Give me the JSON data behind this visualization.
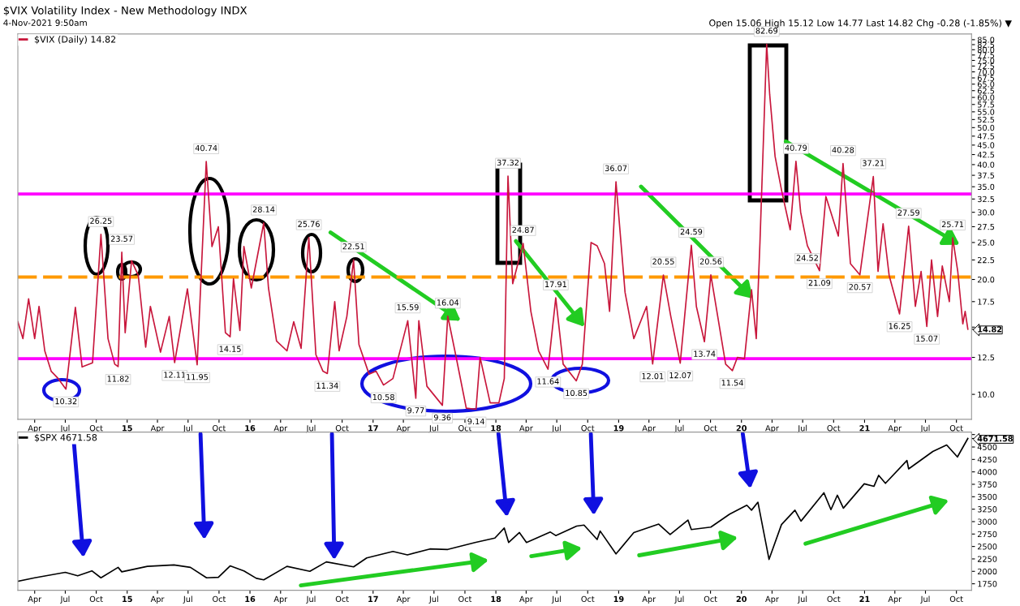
{
  "chart_data": [
    {
      "type": "line",
      "title": "$VIX Volatility Index - New Methodology INDX",
      "subtitle": "4-Nov-2021 9:50am",
      "log": "y",
      "legend": "top left",
      "marker": "none",
      "line_style": "solid",
      "ylim": [
        8.6,
        88
      ],
      "yticks": [
        {
          "value": 10,
          "label": "10.0"
        },
        {
          "value": 12.5,
          "label": "12.5"
        },
        {
          "value": 14.82,
          "label": "14.82"
        },
        {
          "value": 15,
          "label": null
        },
        {
          "value": 17.5,
          "label": "17.5"
        },
        {
          "value": 20,
          "label": "20.0"
        },
        {
          "value": 22.5,
          "label": "22.5"
        },
        {
          "value": 25,
          "label": "25.0"
        },
        {
          "value": 27.5,
          "label": "27.5"
        },
        {
          "value": 30,
          "label": "30.0"
        },
        {
          "value": 32.5,
          "label": "32.5"
        },
        {
          "value": 35,
          "label": "35.0"
        },
        {
          "value": 37.5,
          "label": "37.5"
        },
        {
          "value": 40,
          "label": "40.0"
        },
        {
          "value": 42.5,
          "label": "42.5"
        },
        {
          "value": 45,
          "label": "45.0"
        },
        {
          "value": 47.5,
          "label": "47.5"
        },
        {
          "value": 50,
          "label": "50.0"
        },
        {
          "value": 52.5,
          "label": "52.5"
        },
        {
          "value": 55,
          "label": "55.0"
        },
        {
          "value": 57.5,
          "label": "57.5"
        },
        {
          "value": 60,
          "label": "60.0"
        },
        {
          "value": 62.5,
          "label": "62.5"
        },
        {
          "value": 65,
          "label": "65.0"
        },
        {
          "value": 67.5,
          "label": "67.5"
        },
        {
          "value": 70,
          "label": "70.0"
        },
        {
          "value": 72.5,
          "label": "72.5"
        },
        {
          "value": 75,
          "label": "75.0"
        },
        {
          "value": 77.5,
          "label": "77.5"
        },
        {
          "value": 80,
          "label": "80.0"
        },
        {
          "value": 82.5,
          "label": "82.5"
        },
        {
          "value": 85,
          "label": "85.0"
        }
      ],
      "xlim": [
        "2014-02-10",
        "2021-11-15"
      ],
      "xticks": [
        {
          "value": "2014-04-01",
          "label": "Apr"
        },
        {
          "value": "2014-07-01",
          "label": "Jul"
        },
        {
          "value": "2014-10-01",
          "label": "Oct"
        },
        {
          "value": "2015-01-01",
          "label": "15"
        },
        {
          "value": "2015-04-01",
          "label": "Apr"
        },
        {
          "value": "2015-07-01",
          "label": "Jul"
        },
        {
          "value": "2015-10-01",
          "label": "Oct"
        },
        {
          "value": "2016-01-01",
          "label": "16"
        },
        {
          "value": "2016-04-01",
          "label": "Apr"
        },
        {
          "value": "2016-07-01",
          "label": "Jul"
        },
        {
          "value": "2016-10-01",
          "label": "Oct"
        },
        {
          "value": "2017-01-01",
          "label": "17"
        },
        {
          "value": "2017-04-01",
          "label": "Apr"
        },
        {
          "value": "2017-07-01",
          "label": "Jul"
        },
        {
          "value": "2017-10-01",
          "label": "Oct"
        },
        {
          "value": "2018-01-01",
          "label": "18"
        },
        {
          "value": "2018-04-01",
          "label": "Apr"
        },
        {
          "value": "2018-07-01",
          "label": "Jul"
        },
        {
          "value": "2018-10-01",
          "label": "Oct"
        },
        {
          "value": "2019-01-01",
          "label": "19"
        },
        {
          "value": "2019-04-01",
          "label": "Apr"
        },
        {
          "value": "2019-07-01",
          "label": "Jul"
        },
        {
          "value": "2019-10-01",
          "label": "Oct"
        },
        {
          "value": "2020-01-01",
          "label": "20"
        },
        {
          "value": "2020-04-01",
          "label": "Apr"
        },
        {
          "value": "2020-07-01",
          "label": "Jul"
        },
        {
          "value": "2020-10-01",
          "label": "Oct"
        },
        {
          "value": "2021-01-01",
          "label": "21"
        },
        {
          "value": "2021-04-01",
          "label": "Apr"
        },
        {
          "value": "2021-07-01",
          "label": "Jul"
        },
        {
          "value": "2021-10-01",
          "label": "Oct"
        }
      ],
      "ref_lines": [
        {
          "axis": "y",
          "value": 33.5,
          "color": "#ff00ff",
          "line_style": "solid"
        },
        {
          "axis": "y",
          "value": 12.4,
          "color": "#ff00ff",
          "line_style": "solid"
        },
        {
          "axis": "y",
          "value": 20.3,
          "color": "#ff9900",
          "line_style": "dashed"
        }
      ],
      "series": [
        {
          "name": "$VIX (Daily) 14.82",
          "color": "#c8173c",
          "x": [
            "2014-02-10",
            "2014-02-25",
            "2014-03-14",
            "2014-04-01",
            "2014-04-14",
            "2014-05-01",
            "2014-05-20",
            "2014-06-10",
            "2014-07-03",
            "2014-07-31",
            "2014-08-20",
            "2014-09-20",
            "2014-10-15",
            "2014-11-05",
            "2014-11-25",
            "2014-12-05",
            "2014-12-16",
            "2014-12-26",
            "2015-01-14",
            "2015-02-03",
            "2015-02-25",
            "2015-03-11",
            "2015-04-10",
            "2015-05-06",
            "2015-05-22",
            "2015-06-29",
            "2015-07-28",
            "2015-08-24",
            "2015-09-10",
            "2015-09-29",
            "2015-10-20",
            "2015-11-03",
            "2015-11-13",
            "2015-12-02",
            "2015-12-14",
            "2016-01-05",
            "2016-02-11",
            "2016-02-25",
            "2016-03-20",
            "2016-04-20",
            "2016-05-10",
            "2016-06-01",
            "2016-06-24",
            "2016-07-15",
            "2016-08-05",
            "2016-08-18",
            "2016-09-09",
            "2016-09-22",
            "2016-10-15",
            "2016-11-04",
            "2016-11-20",
            "2016-12-20",
            "2017-01-10",
            "2017-02-01",
            "2017-03-01",
            "2017-04-14",
            "2017-05-08",
            "2017-05-17",
            "2017-06-10",
            "2017-07-26",
            "2017-08-11",
            "2017-09-05",
            "2017-10-05",
            "2017-11-03",
            "2017-11-15",
            "2017-12-15",
            "2018-01-10",
            "2018-01-26",
            "2018-02-06",
            "2018-02-20",
            "2018-03-23",
            "2018-04-15",
            "2018-05-08",
            "2018-06-05",
            "2018-06-28",
            "2018-07-20",
            "2018-08-28",
            "2018-09-15",
            "2018-10-11",
            "2018-10-29",
            "2018-11-20",
            "2018-12-05",
            "2018-12-24",
            "2019-01-20",
            "2019-02-15",
            "2019-03-25",
            "2019-04-12",
            "2019-05-14",
            "2019-06-05",
            "2019-07-03",
            "2019-08-05",
            "2019-08-20",
            "2019-09-13",
            "2019-10-02",
            "2019-11-15",
            "2019-12-05",
            "2019-12-20",
            "2020-01-10",
            "2020-01-31",
            "2020-02-14",
            "2020-02-25",
            "2020-03-16",
            "2020-03-25",
            "2020-04-10",
            "2020-04-30",
            "2020-05-25",
            "2020-06-11",
            "2020-06-25",
            "2020-07-15",
            "2020-08-20",
            "2020-09-08",
            "2020-10-15",
            "2020-10-29",
            "2020-11-20",
            "2020-12-18",
            "2021-01-27",
            "2021-02-10",
            "2021-02-25",
            "2021-03-15",
            "2021-04-15",
            "2021-05-12",
            "2021-06-01",
            "2021-06-18",
            "2021-07-05",
            "2021-07-19",
            "2021-08-06",
            "2021-08-20",
            "2021-09-10",
            "2021-09-20",
            "2021-10-05",
            "2021-10-20",
            "2021-10-27",
            "2021-11-04"
          ],
          "values": [
            15.5,
            14,
            17.8,
            14,
            17,
            13,
            11.5,
            11,
            10.32,
            16.9,
            11.8,
            12.1,
            26.25,
            14,
            12,
            11.82,
            23.57,
            14.5,
            22.4,
            20.5,
            13.3,
            17,
            12.9,
            16,
            12.11,
            18.9,
            11.95,
            40.74,
            24.4,
            27.5,
            14.5,
            14.15,
            20.1,
            14.7,
            24.4,
            19,
            28.14,
            19,
            13.8,
            13,
            15.5,
            13.2,
            25.76,
            12.7,
            11.5,
            11.34,
            17.5,
            13,
            16,
            22.51,
            13.5,
            11.3,
            11.5,
            10.58,
            11,
            15.59,
            9.77,
            15.6,
            10.5,
            9.36,
            16.04,
            12.5,
            9.2,
            9.14,
            12.5,
            9.5,
            9.5,
            11,
            37.32,
            19.5,
            24.87,
            16.5,
            13,
            11.64,
            17.91,
            12,
            10.85,
            12,
            25,
            24.5,
            22,
            16.5,
            36.07,
            18.5,
            14,
            17,
            12.01,
            20.55,
            16,
            12.07,
            24.59,
            17,
            13.74,
            20.56,
            12,
            11.54,
            12.5,
            12.4,
            18.8,
            14,
            25,
            82.69,
            61,
            42,
            34,
            27,
            40.79,
            30,
            24.52,
            21.09,
            33,
            26,
            40.28,
            22,
            20.57,
            37.21,
            21,
            28,
            20.5,
            16.25,
            27.59,
            17,
            21,
            15.07,
            22.5,
            16,
            21.7,
            17.5,
            25.71,
            21,
            15.3,
            16.5,
            14.82
          ]
        }
      ],
      "annotations": [
        "Open 15.06 High 15.12 Low 14.77 Last 14.82 Chg -0.28 (-1.85%) ▼",
        {
          "text": "10.32",
          "x": "2014-07-03",
          "y": 10.32
        },
        {
          "text": "26.25",
          "x": "2014-10-15",
          "y": 26.25
        },
        {
          "text": "11.82",
          "x": "2014-12-05",
          "y": 11.82
        },
        {
          "text": "23.57",
          "x": "2014-12-16",
          "y": 23.57
        },
        {
          "text": "12.11",
          "x": "2015-05-22",
          "y": 12.11
        },
        {
          "text": "11.95",
          "x": "2015-07-28",
          "y": 11.95
        },
        {
          "text": "40.74",
          "x": "2015-08-24",
          "y": 40.74
        },
        {
          "text": "14.15",
          "x": "2015-11-03",
          "y": 14.15
        },
        {
          "text": "28.14",
          "x": "2016-02-11",
          "y": 28.14
        },
        {
          "text": "25.76",
          "x": "2016-06-24",
          "y": 25.76
        },
        {
          "text": "11.34",
          "x": "2016-08-18",
          "y": 11.34
        },
        {
          "text": "22.51",
          "x": "2016-11-04",
          "y": 22.51
        },
        {
          "text": "10.58",
          "x": "2017-02-01",
          "y": 10.58
        },
        {
          "text": "15.59",
          "x": "2017-04-14",
          "y": 15.59
        },
        {
          "text": "9.77",
          "x": "2017-05-08",
          "y": 9.77
        },
        {
          "text": "9.36",
          "x": "2017-07-26",
          "y": 9.36
        },
        {
          "text": "16.04",
          "x": "2017-08-11",
          "y": 16.04
        },
        {
          "text": "9.14",
          "x": "2017-11-03",
          "y": 9.14
        },
        {
          "text": "37.32",
          "x": "2018-02-06",
          "y": 37.32
        },
        {
          "text": "24.87",
          "x": "2018-03-23",
          "y": 24.87
        },
        {
          "text": "11.64",
          "x": "2018-06-05",
          "y": 11.64
        },
        {
          "text": "17.91",
          "x": "2018-06-28",
          "y": 17.91
        },
        {
          "text": "10.85",
          "x": "2018-08-28",
          "y": 10.85
        },
        {
          "text": "36.07",
          "x": "2018-12-24",
          "y": 36.07
        },
        {
          "text": "12.01",
          "x": "2019-04-12",
          "y": 12.01
        },
        {
          "text": "20.55",
          "x": "2019-05-14",
          "y": 20.55
        },
        {
          "text": "12.07",
          "x": "2019-07-03",
          "y": 12.07
        },
        {
          "text": "24.59",
          "x": "2019-08-05",
          "y": 24.59
        },
        {
          "text": "13.74",
          "x": "2019-09-13",
          "y": 13.74
        },
        {
          "text": "20.56",
          "x": "2019-10-02",
          "y": 20.56
        },
        {
          "text": "11.54",
          "x": "2019-12-05",
          "y": 11.54
        },
        {
          "text": "82.69",
          "x": "2020-03-16",
          "y": 82.69
        },
        {
          "text": "40.79",
          "x": "2020-06-11",
          "y": 40.79
        },
        {
          "text": "24.52",
          "x": "2020-07-15",
          "y": 24.52
        },
        {
          "text": "21.09",
          "x": "2020-08-20",
          "y": 21.09
        },
        {
          "text": "40.28",
          "x": "2020-10-29",
          "y": 40.28
        },
        {
          "text": "20.57",
          "x": "2020-12-18",
          "y": 20.57
        },
        {
          "text": "37.21",
          "x": "2021-01-27",
          "y": 37.21
        },
        {
          "text": "16.25",
          "x": "2021-04-15",
          "y": 16.25
        },
        {
          "text": "27.59",
          "x": "2021-05-12",
          "y": 27.59
        },
        {
          "text": "15.07",
          "x": "2021-07-05",
          "y": 15.07
        },
        {
          "text": "25.71",
          "x": "2021-09-20",
          "y": 25.71
        }
      ]
    },
    {
      "type": "line",
      "legend": "top left",
      "marker": "none",
      "line_style": "solid",
      "ylim": [
        1620,
        4800
      ],
      "yticks": [
        1750,
        2000,
        2250,
        2500,
        2750,
        3000,
        3250,
        3500,
        3750,
        4000,
        4250,
        4500,
        4671.58,
        {
          "value": 4750,
          "label": null
        }
      ],
      "xlim": [
        "2014-02-10",
        "2021-11-15"
      ],
      "xticks": [
        {
          "value": "2014-04-01",
          "label": "Apr"
        },
        {
          "value": "2014-07-01",
          "label": "Jul"
        },
        {
          "value": "2014-10-01",
          "label": "Oct"
        },
        {
          "value": "2015-01-01",
          "label": "15"
        },
        {
          "value": "2015-04-01",
          "label": "Apr"
        },
        {
          "value": "2015-07-01",
          "label": "Jul"
        },
        {
          "value": "2015-10-01",
          "label": "Oct"
        },
        {
          "value": "2016-01-01",
          "label": "16"
        },
        {
          "value": "2016-04-01",
          "label": "Apr"
        },
        {
          "value": "2016-07-01",
          "label": "Jul"
        },
        {
          "value": "2016-10-01",
          "label": "Oct"
        },
        {
          "value": "2017-01-01",
          "label": "17"
        },
        {
          "value": "2017-04-01",
          "label": "Apr"
        },
        {
          "value": "2017-07-01",
          "label": "Jul"
        },
        {
          "value": "2017-10-01",
          "label": "Oct"
        },
        {
          "value": "2018-01-01",
          "label": "18"
        },
        {
          "value": "2018-04-01",
          "label": "Apr"
        },
        {
          "value": "2018-07-01",
          "label": "Jul"
        },
        {
          "value": "2018-10-01",
          "label": "Oct"
        },
        {
          "value": "2019-01-01",
          "label": "19"
        },
        {
          "value": "2019-04-01",
          "label": "Apr"
        },
        {
          "value": "2019-07-01",
          "label": "Jul"
        },
        {
          "value": "2019-10-01",
          "label": "Oct"
        },
        {
          "value": "2020-01-01",
          "label": "20"
        },
        {
          "value": "2020-04-01",
          "label": "Apr"
        },
        {
          "value": "2020-07-01",
          "label": "Jul"
        },
        {
          "value": "2020-10-01",
          "label": "Oct"
        },
        {
          "value": "2021-01-01",
          "label": "21"
        },
        {
          "value": "2021-04-01",
          "label": "Apr"
        },
        {
          "value": "2021-07-01",
          "label": "Jul"
        },
        {
          "value": "2021-10-01",
          "label": "Oct"
        }
      ],
      "series": [
        {
          "name": "$SPX 4671.58",
          "color": "#000000",
          "x": [
            "2014-02-10",
            "2014-04-01",
            "2014-07-01",
            "2014-08-07",
            "2014-09-18",
            "2014-10-15",
            "2014-12-05",
            "2014-12-16",
            "2015-03-02",
            "2015-05-20",
            "2015-07-08",
            "2015-08-25",
            "2015-09-29",
            "2015-11-03",
            "2015-12-14",
            "2016-01-20",
            "2016-02-11",
            "2016-04-20",
            "2016-06-27",
            "2016-08-15",
            "2016-11-04",
            "2016-12-13",
            "2017-03-01",
            "2017-04-13",
            "2017-06-19",
            "2017-08-11",
            "2017-10-31",
            "2017-12-29",
            "2018-01-26",
            "2018-02-08",
            "2018-03-12",
            "2018-04-02",
            "2018-06-12",
            "2018-06-28",
            "2018-08-29",
            "2018-09-20",
            "2018-10-29",
            "2018-11-07",
            "2018-12-24",
            "2019-02-15",
            "2019-04-30",
            "2019-06-03",
            "2019-07-26",
            "2019-08-05",
            "2019-10-02",
            "2019-11-27",
            "2020-01-17",
            "2020-01-31",
            "2020-02-19",
            "2020-03-23",
            "2020-04-29",
            "2020-06-08",
            "2020-06-26",
            "2020-09-02",
            "2020-09-23",
            "2020-10-12",
            "2020-10-30",
            "2020-12-31",
            "2021-01-29",
            "2021-02-12",
            "2021-03-04",
            "2021-05-07",
            "2021-05-12",
            "2021-07-23",
            "2021-09-02",
            "2021-10-04",
            "2021-11-04"
          ],
          "values": [
            1800,
            1870,
            1980,
            1910,
            2010,
            1870,
            2080,
            1990,
            2100,
            2130,
            2080,
            1870,
            1880,
            2110,
            2010,
            1860,
            1830,
            2100,
            2000,
            2190,
            2090,
            2270,
            2400,
            2330,
            2450,
            2440,
            2580,
            2670,
            2870,
            2580,
            2780,
            2580,
            2790,
            2720,
            2910,
            2930,
            2640,
            2810,
            2350,
            2780,
            2950,
            2740,
            3030,
            2840,
            2890,
            3150,
            3330,
            3230,
            3390,
            2240,
            2940,
            3230,
            3010,
            3580,
            3240,
            3530,
            3270,
            3760,
            3710,
            3930,
            3770,
            4230,
            4060,
            4410,
            4540,
            4300,
            4671.58
          ]
        }
      ]
    }
  ]
}
